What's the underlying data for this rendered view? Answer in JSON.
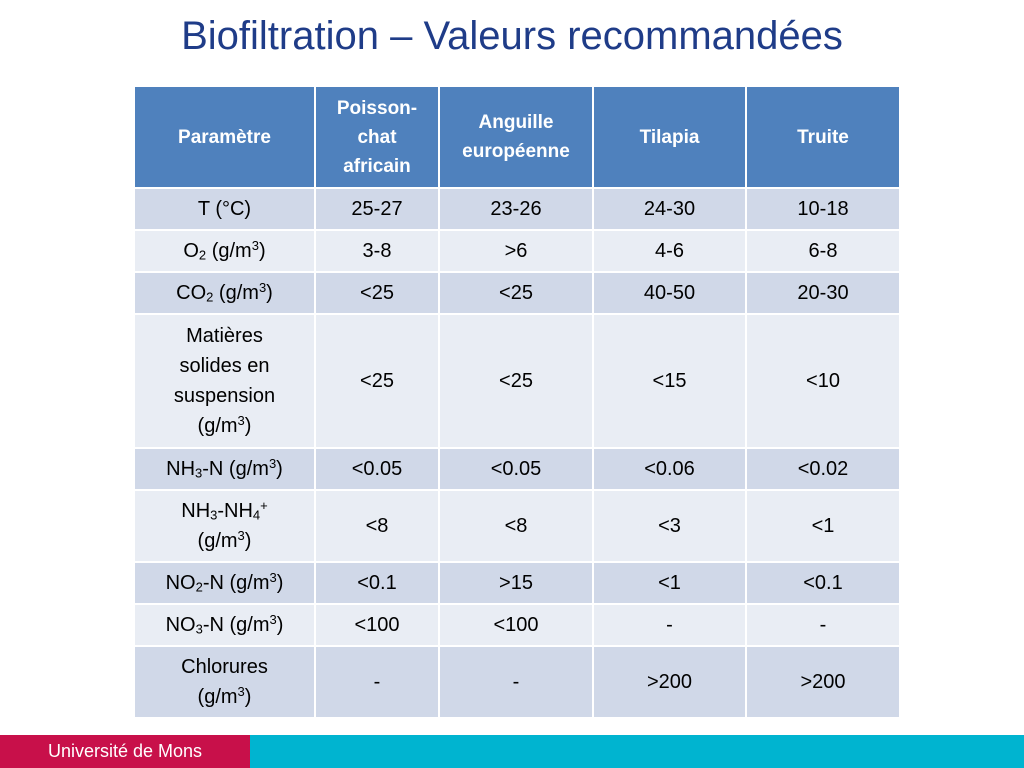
{
  "slide": {
    "title": "Biofiltration – Valeurs recommandées"
  },
  "table": {
    "headers": {
      "param": "Paramètre",
      "species": [
        {
          "line1": "Poisson-",
          "line2": "chat",
          "line3": "africain"
        },
        {
          "line1": "Anguille",
          "line2": "européenne",
          "line3": ""
        },
        {
          "line1": "Tilapia",
          "line2": "",
          "line3": ""
        },
        {
          "line1": "Truite",
          "line2": "",
          "line3": ""
        }
      ]
    },
    "params": {
      "t": "T (°C)",
      "o2": {
        "a": "O",
        "sub": "2",
        "b": " (g/m",
        "sup": "3",
        "c": ")"
      },
      "co2": {
        "a": "CO",
        "sub": "2",
        "b": " (g/m",
        "sup": "3",
        "c": ")"
      },
      "mes": {
        "l1": "Matières",
        "l2": "solides en",
        "l3": "suspension",
        "l4a": "(g/m",
        "l4sup": "3",
        "l4b": ")"
      },
      "nh3n": {
        "a": "NH",
        "sub": "3",
        "b": "-N (g/m",
        "sup": "3",
        "c": ")"
      },
      "nh3nh4": {
        "a": "NH",
        "sub1": "3",
        "b": "-NH",
        "sub2": "4",
        "sup1": "+",
        "l2a": "(g/m",
        "l2sup": "3",
        "l2b": ")"
      },
      "no2n": {
        "a": "NO",
        "sub": "2",
        "b": "-N (g/m",
        "sup": "3",
        "c": ")"
      },
      "no3n": {
        "a": "NO",
        "sub": "3",
        "b": "-N (g/m",
        "sup": "3",
        "c": ")"
      },
      "cl": {
        "l1": "Chlorures",
        "l2a": "(g/m",
        "l2sup": "3",
        "l2b": ")"
      }
    },
    "values": [
      [
        "25-27",
        "23-26",
        "24-30",
        "10-18"
      ],
      [
        "3-8",
        ">6",
        "4-6",
        "6-8"
      ],
      [
        "<25",
        "<25",
        "40-50",
        "20-30"
      ],
      [
        "<25",
        "<25",
        "<15",
        "<10"
      ],
      [
        "<0.05",
        "<0.05",
        "<0.06",
        "<0.02"
      ],
      [
        "<8",
        "<8",
        "<3",
        "<1"
      ],
      [
        "<0.1",
        ">15",
        "<1",
        "<0.1"
      ],
      [
        "<100",
        "<100",
        "-",
        "-"
      ],
      [
        "-",
        "-",
        ">200",
        ">200"
      ]
    ]
  },
  "footer": {
    "brand": "Université de Mons"
  },
  "colors": {
    "title": "#1f3c88",
    "header": "#4f81bd",
    "row_dark": "#d0d8e8",
    "row_light": "#e9edf4",
    "footer_bar": "#00b4d0",
    "brand": "#c8104a"
  }
}
